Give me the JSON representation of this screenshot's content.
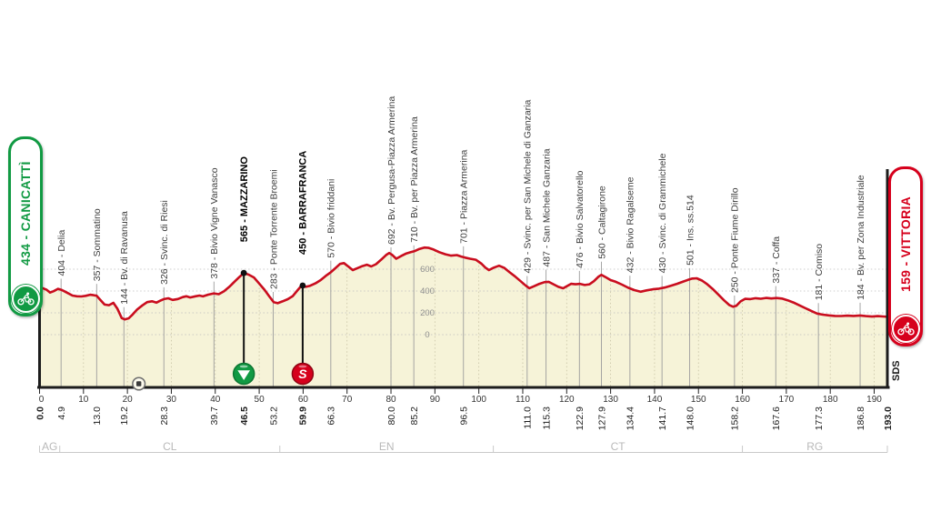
{
  "stage": {
    "start_badge": "434 - CANICATTÌ",
    "finish_badge": "159 - VITTORIA",
    "credit": "SDS"
  },
  "colors": {
    "profile_line": "#c90d1e",
    "profile_fill": "#f6f3d8",
    "start_green": "#119a43",
    "finish_red": "#d6001c",
    "grid_dotted": "#bdbdbd",
    "grid_dotted_in_fill": "#c7c2a4",
    "waypoint_line": "#9c9c9c",
    "axis": "#1c1c1c",
    "province": "#b9b9b9",
    "label_regular": "#3d3d3d",
    "label_bold": "#000000",
    "elevation_scale": "#8f8f8f"
  },
  "chart_data": {
    "type": "area",
    "title": "Canicattì - Vittoria stage altimetry",
    "x_unit": "km",
    "y_unit": "m",
    "x_range": [
      0,
      193
    ],
    "x_ticks": [
      0,
      10,
      20,
      30,
      40,
      50,
      60,
      70,
      80,
      90,
      100,
      110,
      120,
      130,
      140,
      150,
      160,
      170,
      180,
      190
    ],
    "elevation_gridlines": [
      600,
      400,
      200,
      0
    ],
    "start": {
      "km": 0.0,
      "elev": 434,
      "name": "CANICATTÌ",
      "km_label": "0.0"
    },
    "finish": {
      "km": 193.0,
      "elev": 159,
      "name": "VITTORIA",
      "km_label": "193.0"
    },
    "waypoints": [
      {
        "km": 4.9,
        "elev": 404,
        "name": "Delia",
        "km_label": "4.9"
      },
      {
        "km": 13.0,
        "elev": 357,
        "name": "Sommatino",
        "km_label": "13.0"
      },
      {
        "km": 19.2,
        "elev": 144,
        "name": "Bv. di Ravanusa",
        "km_label": "19.2"
      },
      {
        "km": 28.3,
        "elev": 326,
        "name": "Svinc. di Riesi",
        "km_label": "28.3"
      },
      {
        "km": 39.7,
        "elev": 378,
        "name": "Bivio Vigne Vanasco",
        "km_label": "39.7"
      },
      {
        "km": 46.5,
        "elev": 565,
        "name": "MAZZARINO",
        "km_label": "46.5",
        "bold": true,
        "marker": "green_triangle"
      },
      {
        "km": 53.2,
        "elev": 283,
        "name": "Ponte Torrente Broemi",
        "km_label": "53.2"
      },
      {
        "km": 59.9,
        "elev": 450,
        "name": "BARRAFRANCA",
        "km_label": "59.9",
        "bold": true,
        "marker": "red_s_sprint"
      },
      {
        "km": 66.3,
        "elev": 570,
        "name": "Bivio friddani",
        "km_label": "66.3"
      },
      {
        "km": 80.0,
        "elev": 692,
        "name": "Bv. Pergusa-Piazza Armerina",
        "km_label": "80.0"
      },
      {
        "km": 85.2,
        "elev": 710,
        "name": "Bv. per Piazza Armerina",
        "km_label": "85.2"
      },
      {
        "km": 96.5,
        "elev": 701,
        "name": "Piazza Armerina",
        "km_label": "96.5"
      },
      {
        "km": 111.0,
        "elev": 429,
        "name": "Svinc. per San Michele di Ganzaria",
        "km_label": "111.0"
      },
      {
        "km": 115.3,
        "elev": 487,
        "name": "San Michele Ganzaria",
        "km_label": "115.3"
      },
      {
        "km": 122.9,
        "elev": 476,
        "name": "Bivio Salvatorello",
        "km_label": "122.9"
      },
      {
        "km": 127.9,
        "elev": 560,
        "name": "Caltagirone",
        "km_label": "127.9"
      },
      {
        "km": 134.4,
        "elev": 432,
        "name": "Bivio Ragalseme",
        "km_label": "134.4"
      },
      {
        "km": 141.7,
        "elev": 430,
        "name": "Svinc. di Grammichele",
        "km_label": "141.7"
      },
      {
        "km": 148.0,
        "elev": 501,
        "name": "Ins. ss.514",
        "km_label": "148.0"
      },
      {
        "km": 158.2,
        "elev": 250,
        "name": "Ponte Fiume Dirillo",
        "km_label": "158.2"
      },
      {
        "km": 167.6,
        "elev": 337,
        "name": "Coffa",
        "km_label": "167.6"
      },
      {
        "km": 177.3,
        "elev": 181,
        "name": "Comiso",
        "km_label": "177.3"
      },
      {
        "km": 186.8,
        "elev": 184,
        "name": "Bv. per Zona Industriale",
        "km_label": "186.8"
      }
    ],
    "provinces": [
      {
        "code": "AG",
        "from_km": 0,
        "to_km": 4.6
      },
      {
        "code": "CL",
        "from_km": 4.6,
        "to_km": 54.7
      },
      {
        "code": "EN",
        "from_km": 54.7,
        "to_km": 103.3
      },
      {
        "code": "CT",
        "from_km": 103.3,
        "to_km": 160.0
      },
      {
        "code": "RG",
        "from_km": 160.0,
        "to_km": 193.0
      }
    ],
    "axis_icons": [
      {
        "km": 22.6,
        "type": "feed-zone"
      }
    ],
    "profile": [
      [
        0,
        436
      ],
      [
        0.8,
        424
      ],
      [
        1.6,
        412
      ],
      [
        2.4,
        386
      ],
      [
        3.2,
        398
      ],
      [
        4.2,
        420
      ],
      [
        4.9,
        412
      ],
      [
        5.6,
        398
      ],
      [
        6.4,
        382
      ],
      [
        7.5,
        358
      ],
      [
        8.5,
        352
      ],
      [
        9.5,
        350
      ],
      [
        10.5,
        356
      ],
      [
        11.5,
        366
      ],
      [
        12.3,
        362
      ],
      [
        13,
        357
      ],
      [
        13.8,
        320
      ],
      [
        14.8,
        276
      ],
      [
        15.8,
        270
      ],
      [
        16.8,
        292
      ],
      [
        17.7,
        240
      ],
      [
        18.7,
        152
      ],
      [
        19.4,
        140
      ],
      [
        20.3,
        150
      ],
      [
        21.2,
        185
      ],
      [
        22.2,
        230
      ],
      [
        23.4,
        268
      ],
      [
        24.5,
        298
      ],
      [
        25.6,
        306
      ],
      [
        26.6,
        293
      ],
      [
        27.5,
        312
      ],
      [
        28.3,
        326
      ],
      [
        29.3,
        333
      ],
      [
        30.3,
        318
      ],
      [
        31.5,
        327
      ],
      [
        32.6,
        344
      ],
      [
        33.4,
        352
      ],
      [
        34.3,
        341
      ],
      [
        35.5,
        352
      ],
      [
        36.4,
        358
      ],
      [
        37.2,
        351
      ],
      [
        38.4,
        367
      ],
      [
        39.7,
        378
      ],
      [
        40.8,
        371
      ],
      [
        42,
        398
      ],
      [
        43.2,
        438
      ],
      [
        44.4,
        486
      ],
      [
        45.5,
        528
      ],
      [
        46.5,
        565
      ],
      [
        47.6,
        550
      ],
      [
        48.8,
        524
      ],
      [
        50,
        468
      ],
      [
        51.2,
        412
      ],
      [
        52.4,
        345
      ],
      [
        53.3,
        298
      ],
      [
        54.2,
        288
      ],
      [
        55.3,
        305
      ],
      [
        56.5,
        325
      ],
      [
        57.6,
        352
      ],
      [
        58.6,
        400
      ],
      [
        59.4,
        438
      ],
      [
        59.9,
        452
      ],
      [
        60.6,
        438
      ],
      [
        61.6,
        448
      ],
      [
        62.8,
        470
      ],
      [
        64,
        500
      ],
      [
        65.2,
        540
      ],
      [
        66.3,
        572
      ],
      [
        67.4,
        612
      ],
      [
        68.4,
        648
      ],
      [
        69.3,
        656
      ],
      [
        70.3,
        624
      ],
      [
        71.3,
        592
      ],
      [
        72.4,
        610
      ],
      [
        73.5,
        628
      ],
      [
        74.5,
        641
      ],
      [
        75.5,
        625
      ],
      [
        76.6,
        646
      ],
      [
        77.8,
        688
      ],
      [
        78.9,
        730
      ],
      [
        79.6,
        748
      ],
      [
        80.3,
        730
      ],
      [
        81.2,
        696
      ],
      [
        82.3,
        720
      ],
      [
        83.5,
        744
      ],
      [
        84.5,
        756
      ],
      [
        85.3,
        764
      ],
      [
        86.5,
        786
      ],
      [
        87.6,
        798
      ],
      [
        88.6,
        795
      ],
      [
        89.7,
        780
      ],
      [
        91,
        756
      ],
      [
        92.4,
        737
      ],
      [
        93.7,
        724
      ],
      [
        95,
        729
      ],
      [
        96,
        716
      ],
      [
        96.9,
        706
      ],
      [
        98,
        696
      ],
      [
        99.3,
        687
      ],
      [
        100.6,
        650
      ],
      [
        101.5,
        614
      ],
      [
        102.3,
        592
      ],
      [
        103.4,
        614
      ],
      [
        104.6,
        632
      ],
      [
        105.8,
        612
      ],
      [
        107,
        572
      ],
      [
        108.2,
        535
      ],
      [
        109.5,
        490
      ],
      [
        110.7,
        448
      ],
      [
        111.5,
        426
      ],
      [
        112.6,
        444
      ],
      [
        113.8,
        466
      ],
      [
        115,
        482
      ],
      [
        115.9,
        484
      ],
      [
        117,
        462
      ],
      [
        118.1,
        438
      ],
      [
        119.2,
        425
      ],
      [
        120.2,
        448
      ],
      [
        121,
        466
      ],
      [
        122,
        462
      ],
      [
        123,
        466
      ],
      [
        124.1,
        455
      ],
      [
        125.2,
        462
      ],
      [
        126.2,
        490
      ],
      [
        127.2,
        530
      ],
      [
        127.9,
        548
      ],
      [
        128.9,
        526
      ],
      [
        130,
        500
      ],
      [
        131.2,
        484
      ],
      [
        132.6,
        458
      ],
      [
        134,
        430
      ],
      [
        135.4,
        408
      ],
      [
        136.8,
        393
      ],
      [
        138.2,
        406
      ],
      [
        139.6,
        416
      ],
      [
        141,
        422
      ],
      [
        142.3,
        432
      ],
      [
        143.7,
        448
      ],
      [
        145.1,
        466
      ],
      [
        146.4,
        484
      ],
      [
        147.6,
        502
      ],
      [
        148.6,
        514
      ],
      [
        149.6,
        517
      ],
      [
        150.8,
        496
      ],
      [
        152,
        462
      ],
      [
        153.2,
        420
      ],
      [
        154.5,
        368
      ],
      [
        155.8,
        315
      ],
      [
        157,
        272
      ],
      [
        157.9,
        256
      ],
      [
        158.6,
        264
      ],
      [
        159.6,
        305
      ],
      [
        160.6,
        328
      ],
      [
        161.8,
        326
      ],
      [
        163,
        334
      ],
      [
        164.2,
        329
      ],
      [
        165.4,
        337
      ],
      [
        166.6,
        332
      ],
      [
        167.8,
        336
      ],
      [
        169,
        331
      ],
      [
        170.3,
        315
      ],
      [
        171.6,
        295
      ],
      [
        173,
        268
      ],
      [
        174.4,
        242
      ],
      [
        175.8,
        215
      ],
      [
        177,
        193
      ],
      [
        178.3,
        183
      ],
      [
        179.7,
        177
      ],
      [
        181.1,
        172
      ],
      [
        182.5,
        171
      ],
      [
        183.9,
        174
      ],
      [
        185.3,
        172
      ],
      [
        186.8,
        176
      ],
      [
        188.1,
        170
      ],
      [
        189.5,
        166
      ],
      [
        190.8,
        170
      ],
      [
        192,
        167
      ],
      [
        193,
        164
      ]
    ]
  }
}
